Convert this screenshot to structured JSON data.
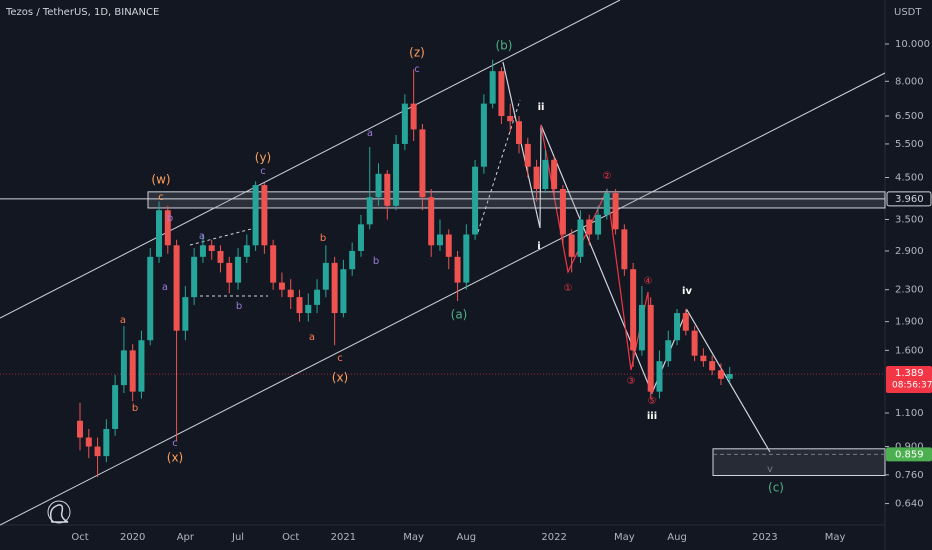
{
  "chart_data": {
    "type": "candlestick",
    "title": "Tezos / TetherUS, 1D, BINANCE",
    "y_unit": "USDT",
    "log_scale": true,
    "grid": false,
    "up_color": "#26a69a",
    "down_color": "#ef5350",
    "ylim": [
      0.563,
      13.01
    ],
    "yticks": [
      {
        "value": 10,
        "label": "10.000"
      },
      {
        "value": 8,
        "label": "8.000"
      },
      {
        "value": 6.5,
        "label": "6.500"
      },
      {
        "value": 5.5,
        "label": "5.500"
      },
      {
        "value": 4.5,
        "label": "4.500"
      },
      {
        "value": 3.5,
        "label": "3.500"
      },
      {
        "value": 2.9,
        "label": "2.900"
      },
      {
        "value": 2.3,
        "label": "2.300"
      },
      {
        "value": 1.9,
        "label": "1.900"
      },
      {
        "value": 1.6,
        "label": "1.600"
      },
      {
        "value": 1.1,
        "label": "1.100"
      },
      {
        "value": 0.9,
        "label": "0.900"
      },
      {
        "value": 0.76,
        "label": "0.760"
      },
      {
        "value": 0.64,
        "label": "0.640"
      }
    ],
    "categories": [
      "Oct",
      null,
      null,
      null,
      null,
      null,
      "2020",
      null,
      null,
      null,
      null,
      null,
      "Apr",
      null,
      null,
      null,
      null,
      null,
      "Jul",
      null,
      null,
      null,
      null,
      null,
      "Oct",
      null,
      null,
      null,
      null,
      null,
      "2021",
      null,
      null,
      null,
      null,
      null,
      null,
      null,
      "May",
      null,
      null,
      null,
      null,
      null,
      "Aug",
      null,
      null,
      null,
      null,
      null,
      null,
      null,
      null,
      null,
      "2022",
      null,
      null,
      null,
      null,
      null,
      null,
      null,
      "May",
      null,
      null,
      null,
      null,
      null,
      "Aug",
      null,
      null,
      null,
      null,
      null,
      null,
      null,
      null,
      null,
      "2023",
      null,
      null,
      null,
      null,
      null,
      null,
      null,
      "May",
      null,
      null,
      null,
      null,
      null
    ],
    "open": [
      1.05,
      0.95,
      0.9,
      0.85,
      1.0,
      1.3,
      1.6,
      1.25,
      1.7,
      2.8,
      3.7,
      3.0,
      1.8,
      2.2,
      2.8,
      3.0,
      2.9,
      2.7,
      2.4,
      2.8,
      3.0,
      4.3,
      3.0,
      2.4,
      2.3,
      2.2,
      2.0,
      2.1,
      2.3,
      2.7,
      2.0,
      2.6,
      2.9,
      3.4,
      4.0,
      4.6,
      3.8,
      5.5,
      7.0,
      6.0,
      4.0,
      3.0,
      3.2,
      2.8,
      2.4,
      3.2,
      4.8,
      7.0,
      8.5,
      6.5,
      6.3,
      5.5,
      4.8,
      4.2,
      5.0,
      4.2,
      3.2,
      2.8,
      3.5,
      3.2,
      3.6,
      4.1,
      3.3,
      2.6,
      1.6,
      2.1,
      1.25,
      1.5,
      1.7,
      2.0,
      1.8,
      1.55,
      1.5,
      1.42,
      1.35,
      null,
      null,
      null,
      null,
      null,
      null,
      null,
      null,
      null,
      null,
      null,
      null,
      null,
      null,
      null,
      null,
      null
    ],
    "high": [
      1.17,
      1.0,
      0.95,
      1.06,
      1.38,
      1.85,
      1.66,
      1.8,
      2.95,
      3.9,
      3.8,
      3.1,
      2.35,
      2.95,
      3.2,
      3.1,
      3.0,
      2.8,
      2.95,
      3.2,
      4.4,
      4.35,
      3.1,
      2.55,
      2.45,
      2.3,
      2.25,
      2.45,
      3.0,
      2.8,
      2.75,
      3.05,
      3.6,
      5.4,
      4.9,
      4.7,
      5.8,
      7.4,
      8.6,
      6.2,
      4.2,
      3.5,
      3.3,
      2.9,
      3.4,
      5.0,
      7.4,
      9.1,
      8.7,
      7.0,
      6.5,
      5.7,
      5.0,
      5.3,
      5.1,
      4.3,
      3.3,
      3.7,
      3.6,
      3.8,
      4.2,
      4.2,
      3.4,
      2.7,
      2.35,
      2.2,
      1.6,
      1.8,
      2.05,
      2.05,
      1.85,
      1.62,
      1.55,
      1.48,
      1.45,
      null,
      null,
      null,
      null,
      null,
      null,
      null,
      null,
      null,
      null,
      null,
      null,
      null,
      null,
      null,
      null,
      null
    ],
    "low": [
      0.88,
      0.84,
      0.75,
      0.82,
      0.96,
      1.24,
      1.18,
      1.2,
      1.65,
      2.7,
      2.85,
      0.93,
      1.7,
      2.1,
      2.7,
      2.75,
      2.55,
      2.25,
      2.3,
      2.7,
      2.9,
      2.85,
      2.3,
      2.2,
      2.05,
      1.9,
      1.9,
      2.0,
      2.2,
      1.65,
      1.95,
      2.5,
      2.8,
      3.3,
      3.8,
      3.5,
      3.7,
      5.3,
      5.6,
      3.7,
      2.8,
      2.9,
      2.6,
      2.15,
      2.3,
      3.1,
      4.6,
      6.8,
      6.2,
      5.9,
      5.2,
      4.5,
      3.9,
      4.1,
      4.0,
      3.0,
      2.55,
      2.7,
      3.0,
      3.1,
      3.5,
      3.2,
      2.5,
      1.45,
      1.55,
      1.2,
      1.2,
      1.45,
      1.65,
      1.75,
      1.5,
      1.45,
      1.38,
      1.3,
      1.32,
      null,
      null,
      null,
      null,
      null,
      null,
      null,
      null,
      null,
      null,
      null,
      null,
      null,
      null,
      null,
      null,
      null
    ],
    "close": [
      0.95,
      0.9,
      0.85,
      1.0,
      1.3,
      1.6,
      1.25,
      1.7,
      2.8,
      3.7,
      3.0,
      1.8,
      2.2,
      2.8,
      3.0,
      2.9,
      2.7,
      2.4,
      2.8,
      3.0,
      4.3,
      3.0,
      2.4,
      2.3,
      2.2,
      2.0,
      2.1,
      2.3,
      2.7,
      2.0,
      2.6,
      2.9,
      3.4,
      4.0,
      4.6,
      3.8,
      5.5,
      7.0,
      6.0,
      4.0,
      3.0,
      3.2,
      2.8,
      2.4,
      3.2,
      4.8,
      7.0,
      8.5,
      6.5,
      6.3,
      5.5,
      4.8,
      4.2,
      5.0,
      4.2,
      3.2,
      2.8,
      3.5,
      3.2,
      3.6,
      4.1,
      3.3,
      2.6,
      1.6,
      2.1,
      1.25,
      1.5,
      1.7,
      2.0,
      1.8,
      1.55,
      1.5,
      1.42,
      1.35,
      1.389,
      null,
      null,
      null,
      null,
      null,
      null,
      null,
      null,
      null,
      null,
      null,
      null,
      null,
      null,
      null,
      null,
      null
    ],
    "last_price": 1.389,
    "last_price_color": "#f23645",
    "countdown": "08:56:37",
    "target": 0.859,
    "target_color": "#4caf50",
    "levels": [
      {
        "value": 3.96,
        "label": "3.960"
      }
    ],
    "zones": [
      {
        "top": 4.13,
        "bottom": 3.75
      },
      {
        "top": 0.888,
        "bottom": 0.757
      }
    ],
    "annotations": [
      {
        "text": "(w)",
        "color": "#ff9f5a"
      },
      {
        "text": "c",
        "color": "#ff9f5a"
      },
      {
        "text": "b",
        "color": "#9c7bd9"
      },
      {
        "text": "a",
        "color": "#9c7bd9"
      },
      {
        "text": "a",
        "color": "#ff7b52"
      },
      {
        "text": "b",
        "color": "#ff7b52"
      },
      {
        "text": "c",
        "color": "#9c7bd9"
      },
      {
        "text": "(x)",
        "color": "#ff9f5a"
      },
      {
        "text": "a",
        "color": "#9c7bd9"
      },
      {
        "text": "b",
        "color": "#9c7bd9"
      },
      {
        "text": "(y)",
        "color": "#ff9f5a"
      },
      {
        "text": "c",
        "color": "#9c7bd9"
      },
      {
        "text": "a",
        "color": "#ff7b52"
      },
      {
        "text": "b",
        "color": "#ff7b52"
      },
      {
        "text": "c",
        "color": "#ff7b52"
      },
      {
        "text": "(x)",
        "color": "#ff9f5a"
      },
      {
        "text": "a",
        "color": "#9c7bd9"
      },
      {
        "text": "b",
        "color": "#9c7bd9"
      },
      {
        "text": "(z)",
        "color": "#ff9f5a"
      },
      {
        "text": "c",
        "color": "#9c7bd9"
      },
      {
        "text": "(b)",
        "color": "#4caf82"
      },
      {
        "text": "(a)",
        "color": "#4caf82"
      },
      {
        "text": "ii",
        "color": "#ffffff"
      },
      {
        "text": "i",
        "color": "#ffffff"
      },
      {
        "text": "①",
        "color": "#f23645"
      },
      {
        "text": "②",
        "color": "#f23645"
      },
      {
        "text": "③",
        "color": "#f23645"
      },
      {
        "text": "④",
        "color": "#f23645"
      },
      {
        "text": "⑤",
        "color": "#f23645"
      },
      {
        "text": "iii",
        "color": "#ffffff"
      },
      {
        "text": "iv",
        "color": "#ffffff"
      },
      {
        "text": "v",
        "color": "#787b86"
      },
      {
        "text": "(c)",
        "color": "#4caf82"
      }
    ]
  }
}
